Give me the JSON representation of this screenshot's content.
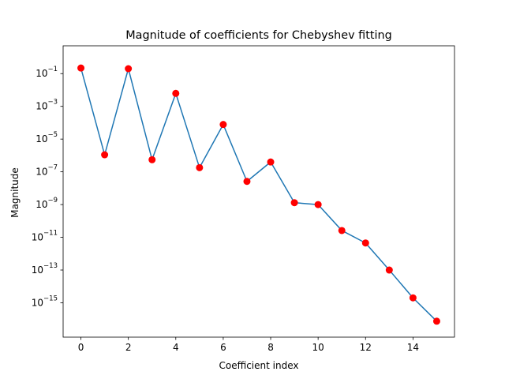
{
  "chart_data": {
    "type": "line",
    "title": "Magnitude of coefficients for Chebyshev fitting",
    "xlabel": "Coefficient index",
    "ylabel": "Magnitude",
    "yscale": "log",
    "xlim": [
      -0.75,
      15.75
    ],
    "ylim_exp": [
      -17.1,
      0.7
    ],
    "x_ticks": [
      0,
      2,
      4,
      6,
      8,
      10,
      12,
      14
    ],
    "y_tick_exponents": [
      -1,
      -3,
      -5,
      -7,
      -9,
      -11,
      -13,
      -15
    ],
    "y_tick_base": "10",
    "grid": false,
    "line_color": "#1f77b4",
    "marker_color": "#ff0000",
    "series": [
      {
        "x": [
          0,
          1,
          2,
          3,
          4,
          5,
          6,
          7,
          8,
          9,
          10,
          11,
          12,
          13,
          14,
          15
        ],
        "y": [
          0.22,
          1.1e-06,
          0.2,
          5.5e-07,
          0.0062,
          1.8e-07,
          7.8e-05,
          2.6e-08,
          4e-07,
          1.3e-09,
          1e-09,
          2.6e-11,
          4.5e-12,
          1e-13,
          2e-15,
          7.5e-17
        ]
      }
    ]
  }
}
